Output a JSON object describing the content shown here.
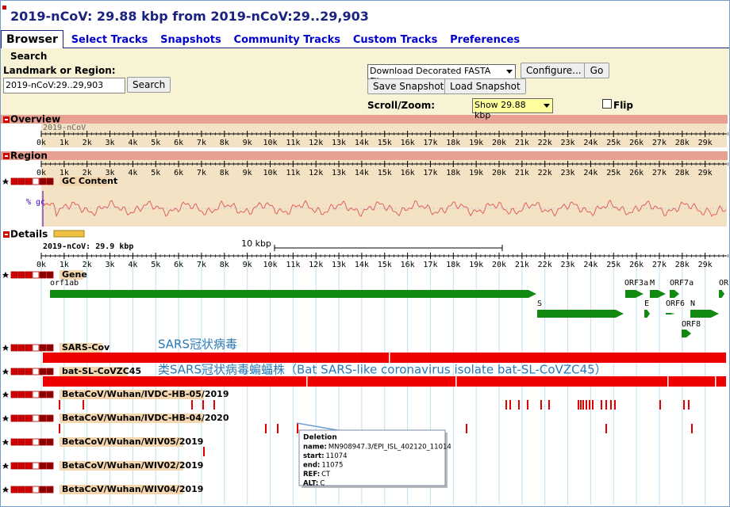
{
  "header": {
    "title": "2019-nCoV: 29.88 kbp from 2019-nCoV:29..29,903"
  },
  "tabs": [
    "Browser",
    "Select Tracks",
    "Snapshots",
    "Community Tracks",
    "Custom Tracks",
    "Preferences"
  ],
  "search": {
    "title": "Search",
    "landmark_label": "Landmark or Region:",
    "landmark_value": "2019-nCoV:29..29,903",
    "search_button": "Search",
    "download_option": "Download Decorated FASTA File",
    "configure_button": "Configure...",
    "go_button": "Go",
    "save_snapshot": "Save Snapshot",
    "load_snapshot": "Load Snapshot",
    "scroll_zoom_label": "Scroll/Zoom:",
    "zoom_option": "Show 29.88 kbp",
    "flip_label": "Flip"
  },
  "overview": {
    "title": "Overview",
    "sequence": "2019-nCoV"
  },
  "region": {
    "title": "Region",
    "gc_track": "GC Content",
    "gc_axis": "% gc"
  },
  "scale_labels": [
    "0k",
    "1k",
    "2k",
    "3k",
    "4k",
    "5k",
    "6k",
    "7k",
    "8k",
    "9k",
    "10k",
    "11k",
    "12k",
    "13k",
    "14k",
    "15k",
    "16k",
    "17k",
    "18k",
    "19k",
    "20k",
    "21k",
    "22k",
    "23k",
    "24k",
    "25k",
    "26k",
    "27k",
    "28k",
    "29k"
  ],
  "details": {
    "title": "Details",
    "sequence": "2019-nCoV: 29.9 kbp",
    "scale_bar": "10 kbp",
    "gene_track": "Gene",
    "genes": [
      "orf1ab",
      "S",
      "ORF3a",
      "M",
      "ORF7a",
      "OR",
      "E",
      "ORF6",
      "N",
      "ORF8"
    ],
    "tracks": [
      "SARS-Cov",
      "bat-SL-CoVZC45",
      "BetaCoV/Wuhan/IVDC-HB-05/2019",
      "BetaCoV/Wuhan/IVDC-HB-04/2020",
      "BetaCoV/Wuhan/WIV05/2019",
      "BetaCoV/Wuhan/WIV02/2019",
      "BetaCoV/Wuhan/WIV04/2019"
    ],
    "annotations": [
      "SARS冠状病毒",
      "类SARS冠状病毒蝙蝠株（Bat SARS-like coronavirus isolate bat-SL-CoVZC45）"
    ]
  },
  "tooltip": {
    "title": "Deletion",
    "rows": [
      [
        "name:",
        "MN908947.3/EPI_ISL_402120_11014"
      ],
      [
        "start:",
        11074
      ],
      [
        "end:",
        11075
      ],
      [
        "REF:",
        "CT"
      ],
      [
        "ALT:",
        "C"
      ]
    ]
  }
}
